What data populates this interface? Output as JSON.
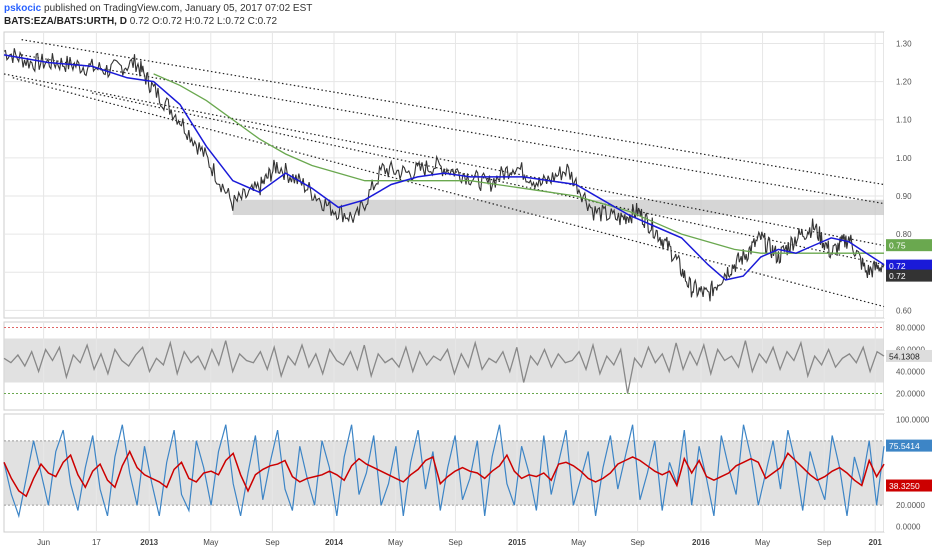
{
  "header": {
    "author": "pskocic",
    "published_text": "published on TradingView.com, January 05, 2017 07:02 EST",
    "symbol": "BATS:EZA/BATS:URTH, D",
    "ohlc": "0.72 O:0.72 H:0.72 L:0.72 C:0.72"
  },
  "colors": {
    "price": "#333333",
    "ma_fast": "#1a1ad8",
    "ma_slow": "#6aa84f",
    "rsi": "#888888",
    "stoch_k": "#3d85c6",
    "stoch_d": "#cc0000",
    "band": "#d9d9d9",
    "grid": "#e6e6e6"
  },
  "chart_data": [
    {
      "type": "line",
      "panel": "price",
      "y_ticks": [
        "1.30",
        "1.20",
        "1.10",
        "1.00",
        "0.90",
        "0.80",
        "0.70",
        "0.60"
      ],
      "ylim": [
        0.58,
        1.33
      ],
      "x_ticks": [
        "Jun",
        "17",
        "2013",
        "May",
        "Sep",
        "2014",
        "May",
        "Sep",
        "2015",
        "May",
        "Sep",
        "2016",
        "May",
        "Sep",
        "201"
      ],
      "x_tick_pos": [
        0.045,
        0.105,
        0.165,
        0.235,
        0.305,
        0.375,
        0.445,
        0.513,
        0.583,
        0.653,
        0.72,
        0.792,
        0.862,
        0.932,
        0.99
      ],
      "price": [
        [
          0,
          1.28
        ],
        [
          0.03,
          1.25
        ],
        [
          0.06,
          1.25
        ],
        [
          0.09,
          1.24
        ],
        [
          0.12,
          1.23
        ],
        [
          0.15,
          1.25
        ],
        [
          0.17,
          1.18
        ],
        [
          0.2,
          1.1
        ],
        [
          0.23,
          1.0
        ],
        [
          0.26,
          0.88
        ],
        [
          0.29,
          0.92
        ],
        [
          0.31,
          0.98
        ],
        [
          0.34,
          0.93
        ],
        [
          0.37,
          0.87
        ],
        [
          0.4,
          0.84
        ],
        [
          0.43,
          0.97
        ],
        [
          0.46,
          0.96
        ],
        [
          0.49,
          0.98
        ],
        [
          0.52,
          0.96
        ],
        [
          0.55,
          0.93
        ],
        [
          0.58,
          0.98
        ],
        [
          0.61,
          0.93
        ],
        [
          0.64,
          0.97
        ],
        [
          0.67,
          0.86
        ],
        [
          0.7,
          0.84
        ],
        [
          0.72,
          0.86
        ],
        [
          0.74,
          0.81
        ],
        [
          0.76,
          0.75
        ],
        [
          0.78,
          0.66
        ],
        [
          0.8,
          0.64
        ],
        [
          0.82,
          0.7
        ],
        [
          0.84,
          0.74
        ],
        [
          0.86,
          0.79
        ],
        [
          0.88,
          0.74
        ],
        [
          0.9,
          0.79
        ],
        [
          0.92,
          0.82
        ],
        [
          0.94,
          0.75
        ],
        [
          0.96,
          0.79
        ],
        [
          0.98,
          0.7
        ],
        [
          1.0,
          0.72
        ]
      ],
      "ma_fast": [
        [
          0,
          1.27
        ],
        [
          0.05,
          1.25
        ],
        [
          0.1,
          1.24
        ],
        [
          0.14,
          1.21
        ],
        [
          0.17,
          1.2
        ],
        [
          0.2,
          1.14
        ],
        [
          0.23,
          1.03
        ],
        [
          0.26,
          0.94
        ],
        [
          0.29,
          0.91
        ],
        [
          0.32,
          0.96
        ],
        [
          0.35,
          0.92
        ],
        [
          0.38,
          0.87
        ],
        [
          0.41,
          0.89
        ],
        [
          0.44,
          0.93
        ],
        [
          0.47,
          0.95
        ],
        [
          0.5,
          0.96
        ],
        [
          0.53,
          0.95
        ],
        [
          0.56,
          0.95
        ],
        [
          0.59,
          0.95
        ],
        [
          0.62,
          0.94
        ],
        [
          0.65,
          0.93
        ],
        [
          0.68,
          0.89
        ],
        [
          0.71,
          0.85
        ],
        [
          0.74,
          0.82
        ],
        [
          0.77,
          0.79
        ],
        [
          0.8,
          0.72
        ],
        [
          0.82,
          0.68
        ],
        [
          0.84,
          0.69
        ],
        [
          0.86,
          0.74
        ],
        [
          0.88,
          0.76
        ],
        [
          0.9,
          0.75
        ],
        [
          0.92,
          0.77
        ],
        [
          0.94,
          0.79
        ],
        [
          0.96,
          0.78
        ],
        [
          0.98,
          0.75
        ],
        [
          1.0,
          0.72
        ]
      ],
      "ma_slow": [
        [
          0.17,
          1.22
        ],
        [
          0.2,
          1.19
        ],
        [
          0.23,
          1.15
        ],
        [
          0.26,
          1.1
        ],
        [
          0.29,
          1.05
        ],
        [
          0.32,
          1.01
        ],
        [
          0.35,
          0.98
        ],
        [
          0.38,
          0.96
        ],
        [
          0.41,
          0.94
        ],
        [
          0.44,
          0.94
        ],
        [
          0.47,
          0.94
        ],
        [
          0.5,
          0.94
        ],
        [
          0.53,
          0.94
        ],
        [
          0.56,
          0.93
        ],
        [
          0.59,
          0.92
        ],
        [
          0.62,
          0.91
        ],
        [
          0.65,
          0.9
        ],
        [
          0.68,
          0.88
        ],
        [
          0.71,
          0.86
        ],
        [
          0.74,
          0.83
        ],
        [
          0.77,
          0.8
        ],
        [
          0.8,
          0.78
        ],
        [
          0.83,
          0.76
        ],
        [
          0.86,
          0.75
        ],
        [
          0.89,
          0.75
        ],
        [
          0.92,
          0.75
        ],
        [
          0.95,
          0.75
        ],
        [
          0.98,
          0.75
        ],
        [
          1.0,
          0.75
        ]
      ],
      "channel_lines": [
        [
          [
            0.02,
            1.31
          ],
          [
            1.0,
            0.93
          ]
        ],
        [
          [
            0.02,
            1.27
          ],
          [
            1.0,
            0.88
          ]
        ],
        [
          [
            0.0,
            1.22
          ],
          [
            1.0,
            0.77
          ]
        ],
        [
          [
            0.01,
            1.21
          ],
          [
            1.0,
            0.61
          ]
        ],
        [
          [
            0.1,
            1.17
          ],
          [
            1.0,
            0.72
          ]
        ]
      ],
      "support_zone": [
        0.85,
        0.89
      ],
      "support_zone_x": [
        0.26,
        1.0
      ],
      "last_labels": [
        {
          "text": "0.75",
          "value": 0.75,
          "color": "#6aa84f"
        },
        {
          "text": "0.72",
          "value": 0.72,
          "color": "#1a1ad8"
        },
        {
          "text": "0.72",
          "value": 0.72,
          "color": "#333333"
        }
      ]
    },
    {
      "type": "line",
      "panel": "rsi",
      "y_ticks": [
        "80.0000",
        "60.0000",
        "40.0000",
        "20.0000"
      ],
      "ylim": [
        5,
        85
      ],
      "upper": 80,
      "lower": 20,
      "band": [
        30,
        70
      ],
      "last_value": "54.1308",
      "last_num": 54.13,
      "values": [
        52,
        48,
        55,
        45,
        58,
        40,
        60,
        50,
        62,
        35,
        55,
        48,
        64,
        42,
        56,
        38,
        60,
        50,
        45,
        55,
        62,
        40,
        52,
        46,
        66,
        38,
        58,
        48,
        54,
        42,
        60,
        46,
        68,
        40,
        56,
        50,
        48,
        58,
        42,
        62,
        36,
        54,
        46,
        64,
        44,
        56,
        38,
        60,
        50,
        46,
        58,
        42,
        64,
        36,
        56,
        48,
        52,
        44,
        62,
        40,
        58,
        46,
        54,
        50,
        60,
        38,
        56,
        44,
        66,
        42,
        52,
        48,
        58,
        40,
        62,
        30,
        54,
        46,
        60,
        44,
        56,
        48,
        50,
        58,
        42,
        64,
        38,
        54,
        46,
        60,
        20,
        52,
        44,
        62,
        48,
        56,
        40,
        66,
        42,
        58,
        46,
        64,
        38,
        60,
        50,
        54,
        44,
        68,
        40,
        56,
        48,
        62,
        42,
        58,
        50,
        66,
        36,
        54,
        46,
        60,
        44,
        52,
        56,
        48,
        62,
        40,
        58,
        54
      ]
    },
    {
      "type": "line",
      "panel": "stochastic",
      "y_ticks": [
        "100.0000",
        "75.5414",
        "38.3250",
        "20.0000",
        "0.0000"
      ],
      "y_tick_vals": [
        100,
        75.5414,
        38.325,
        20,
        0
      ],
      "ylim": [
        -5,
        105
      ],
      "upper": 80,
      "lower": 20,
      "k_last": "75.5414",
      "d_last": "38.3250",
      "k_values": [
        60,
        30,
        10,
        45,
        80,
        50,
        20,
        70,
        90,
        40,
        15,
        55,
        85,
        35,
        10,
        65,
        95,
        50,
        20,
        75,
        40,
        10,
        60,
        90,
        30,
        15,
        80,
        55,
        20,
        70,
        95,
        40,
        10,
        50,
        85,
        25,
        60,
        90,
        35,
        15,
        75,
        45,
        20,
        80,
        55,
        10,
        65,
        95,
        30,
        50,
        85,
        20,
        40,
        75,
        10,
        60,
        90,
        35,
        70,
        15,
        55,
        85,
        25,
        45,
        80,
        10,
        65,
        95,
        40,
        20,
        75,
        50,
        15,
        85,
        30,
        60,
        90,
        20,
        45,
        70,
        10,
        55,
        85,
        35,
        65,
        95,
        25,
        50,
        80,
        15,
        60,
        40,
        90,
        20,
        75,
        45,
        10,
        85,
        55,
        30,
        95,
        65,
        20,
        50,
        80,
        35,
        90,
        60,
        15,
        70,
        45,
        25,
        85,
        55,
        10,
        65,
        40,
        80,
        20,
        75
      ]
    }
  ]
}
